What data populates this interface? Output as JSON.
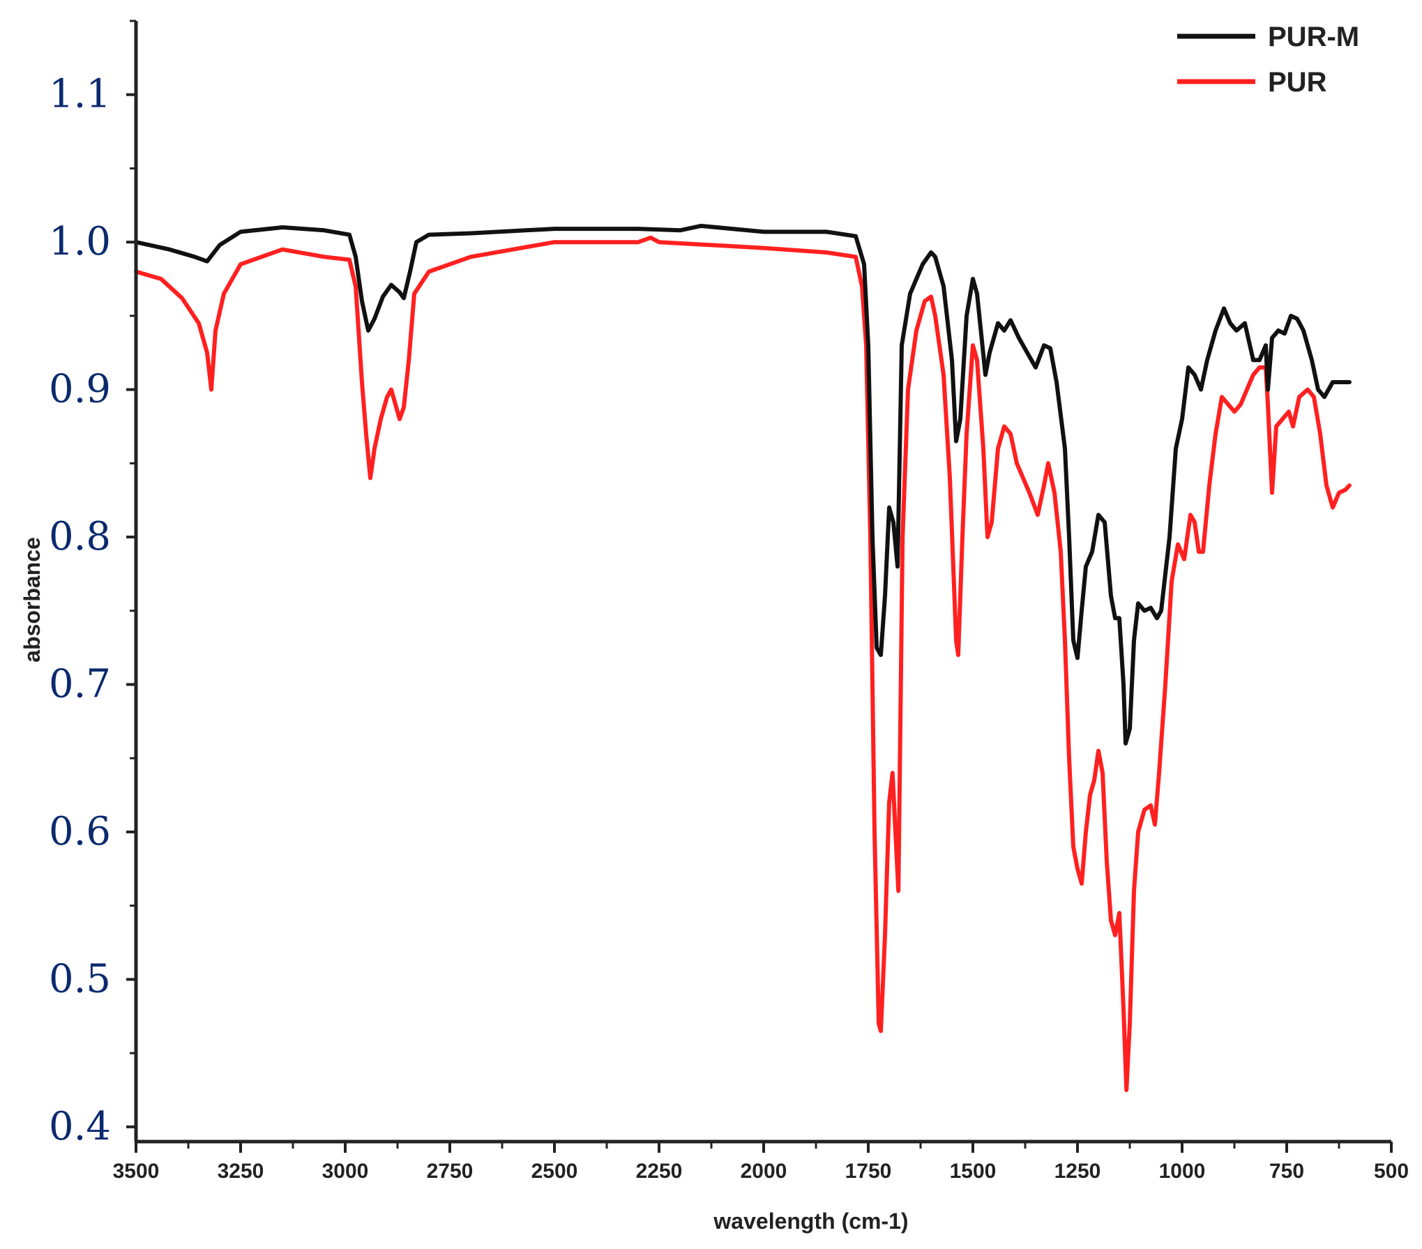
{
  "chart_data": {
    "type": "line",
    "xlabel": "wavelength (cm-1)",
    "ylabel": "absorbance",
    "xlim": [
      3500,
      500
    ],
    "ylim": [
      0.39,
      1.15
    ],
    "x_reversed": true,
    "grid": false,
    "legend_position": "top-right",
    "x_ticks": [
      3500,
      3250,
      3000,
      2750,
      2500,
      2250,
      2000,
      1750,
      1500,
      1250,
      1000,
      750,
      500
    ],
    "x_tick_labels": [
      "3500",
      "3250",
      "3000",
      "2750",
      "2500",
      "2250",
      "2000",
      "1750",
      "1500",
      "1250",
      "1000",
      "750",
      "500"
    ],
    "y_ticks": [
      0.4,
      0.5,
      0.6,
      0.7,
      0.8,
      0.9,
      1.0,
      1.1
    ],
    "y_tick_labels": [
      "0.4",
      "0.5",
      "0.6",
      "0.7",
      "0.8",
      "0.9",
      "1.0",
      "1.1"
    ],
    "series": [
      {
        "name": "PUR-M",
        "color": "#111111",
        "points": [
          [
            3500,
            1.0
          ],
          [
            3420,
            0.995
          ],
          [
            3360,
            0.99
          ],
          [
            3330,
            0.987
          ],
          [
            3300,
            0.998
          ],
          [
            3250,
            1.007
          ],
          [
            3150,
            1.01
          ],
          [
            3050,
            1.008
          ],
          [
            2990,
            1.005
          ],
          [
            2975,
            0.99
          ],
          [
            2960,
            0.96
          ],
          [
            2945,
            0.94
          ],
          [
            2930,
            0.948
          ],
          [
            2910,
            0.963
          ],
          [
            2890,
            0.971
          ],
          [
            2870,
            0.966
          ],
          [
            2860,
            0.962
          ],
          [
            2845,
            0.98
          ],
          [
            2830,
            1.0
          ],
          [
            2800,
            1.005
          ],
          [
            2700,
            1.006
          ],
          [
            2500,
            1.009
          ],
          [
            2300,
            1.009
          ],
          [
            2200,
            1.008
          ],
          [
            2150,
            1.011
          ],
          [
            2000,
            1.007
          ],
          [
            1850,
            1.007
          ],
          [
            1780,
            1.004
          ],
          [
            1760,
            0.985
          ],
          [
            1750,
            0.93
          ],
          [
            1740,
            0.8
          ],
          [
            1730,
            0.725
          ],
          [
            1720,
            0.72
          ],
          [
            1710,
            0.76
          ],
          [
            1700,
            0.82
          ],
          [
            1690,
            0.81
          ],
          [
            1680,
            0.78
          ],
          [
            1670,
            0.93
          ],
          [
            1650,
            0.965
          ],
          [
            1620,
            0.985
          ],
          [
            1600,
            0.993
          ],
          [
            1590,
            0.99
          ],
          [
            1570,
            0.97
          ],
          [
            1550,
            0.92
          ],
          [
            1540,
            0.865
          ],
          [
            1530,
            0.88
          ],
          [
            1515,
            0.95
          ],
          [
            1500,
            0.975
          ],
          [
            1490,
            0.965
          ],
          [
            1470,
            0.91
          ],
          [
            1460,
            0.925
          ],
          [
            1440,
            0.945
          ],
          [
            1425,
            0.94
          ],
          [
            1410,
            0.947
          ],
          [
            1390,
            0.935
          ],
          [
            1370,
            0.925
          ],
          [
            1350,
            0.915
          ],
          [
            1330,
            0.93
          ],
          [
            1315,
            0.928
          ],
          [
            1300,
            0.905
          ],
          [
            1280,
            0.86
          ],
          [
            1270,
            0.8
          ],
          [
            1260,
            0.73
          ],
          [
            1250,
            0.718
          ],
          [
            1240,
            0.75
          ],
          [
            1230,
            0.78
          ],
          [
            1215,
            0.79
          ],
          [
            1200,
            0.815
          ],
          [
            1185,
            0.81
          ],
          [
            1170,
            0.76
          ],
          [
            1160,
            0.745
          ],
          [
            1150,
            0.745
          ],
          [
            1140,
            0.7
          ],
          [
            1135,
            0.66
          ],
          [
            1125,
            0.67
          ],
          [
            1115,
            0.73
          ],
          [
            1105,
            0.755
          ],
          [
            1090,
            0.75
          ],
          [
            1075,
            0.752
          ],
          [
            1060,
            0.745
          ],
          [
            1050,
            0.75
          ],
          [
            1030,
            0.8
          ],
          [
            1015,
            0.86
          ],
          [
            1000,
            0.88
          ],
          [
            985,
            0.915
          ],
          [
            970,
            0.91
          ],
          [
            955,
            0.9
          ],
          [
            940,
            0.92
          ],
          [
            920,
            0.94
          ],
          [
            900,
            0.955
          ],
          [
            885,
            0.945
          ],
          [
            870,
            0.94
          ],
          [
            850,
            0.945
          ],
          [
            830,
            0.92
          ],
          [
            815,
            0.92
          ],
          [
            800,
            0.93
          ],
          [
            795,
            0.9
          ],
          [
            785,
            0.935
          ],
          [
            770,
            0.94
          ],
          [
            755,
            0.938
          ],
          [
            740,
            0.95
          ],
          [
            725,
            0.948
          ],
          [
            710,
            0.94
          ],
          [
            690,
            0.92
          ],
          [
            675,
            0.9
          ],
          [
            660,
            0.895
          ],
          [
            650,
            0.9
          ],
          [
            640,
            0.905
          ],
          [
            625,
            0.905
          ],
          [
            600,
            0.905
          ]
        ]
      },
      {
        "name": "PUR",
        "color": "#ff2020",
        "points": [
          [
            3500,
            0.98
          ],
          [
            3440,
            0.975
          ],
          [
            3390,
            0.962
          ],
          [
            3350,
            0.945
          ],
          [
            3330,
            0.925
          ],
          [
            3320,
            0.9
          ],
          [
            3310,
            0.94
          ],
          [
            3290,
            0.965
          ],
          [
            3250,
            0.985
          ],
          [
            3150,
            0.995
          ],
          [
            3050,
            0.99
          ],
          [
            2990,
            0.988
          ],
          [
            2975,
            0.97
          ],
          [
            2960,
            0.905
          ],
          [
            2950,
            0.87
          ],
          [
            2940,
            0.84
          ],
          [
            2930,
            0.86
          ],
          [
            2915,
            0.88
          ],
          [
            2900,
            0.895
          ],
          [
            2890,
            0.9
          ],
          [
            2880,
            0.89
          ],
          [
            2870,
            0.88
          ],
          [
            2860,
            0.888
          ],
          [
            2848,
            0.92
          ],
          [
            2835,
            0.965
          ],
          [
            2800,
            0.98
          ],
          [
            2700,
            0.99
          ],
          [
            2500,
            1.0
          ],
          [
            2300,
            1.0
          ],
          [
            2270,
            1.003
          ],
          [
            2250,
            1.0
          ],
          [
            2000,
            0.996
          ],
          [
            1850,
            0.993
          ],
          [
            1780,
            0.99
          ],
          [
            1765,
            0.97
          ],
          [
            1755,
            0.93
          ],
          [
            1745,
            0.8
          ],
          [
            1735,
            0.6
          ],
          [
            1725,
            0.47
          ],
          [
            1720,
            0.465
          ],
          [
            1710,
            0.53
          ],
          [
            1700,
            0.62
          ],
          [
            1692,
            0.64
          ],
          [
            1685,
            0.6
          ],
          [
            1678,
            0.56
          ],
          [
            1668,
            0.8
          ],
          [
            1655,
            0.9
          ],
          [
            1635,
            0.94
          ],
          [
            1615,
            0.96
          ],
          [
            1600,
            0.963
          ],
          [
            1590,
            0.95
          ],
          [
            1570,
            0.91
          ],
          [
            1555,
            0.84
          ],
          [
            1540,
            0.73
          ],
          [
            1535,
            0.72
          ],
          [
            1525,
            0.8
          ],
          [
            1515,
            0.87
          ],
          [
            1500,
            0.93
          ],
          [
            1490,
            0.92
          ],
          [
            1475,
            0.86
          ],
          [
            1465,
            0.8
          ],
          [
            1455,
            0.81
          ],
          [
            1440,
            0.86
          ],
          [
            1425,
            0.875
          ],
          [
            1410,
            0.87
          ],
          [
            1395,
            0.85
          ],
          [
            1380,
            0.84
          ],
          [
            1365,
            0.83
          ],
          [
            1345,
            0.815
          ],
          [
            1330,
            0.835
          ],
          [
            1320,
            0.85
          ],
          [
            1305,
            0.83
          ],
          [
            1290,
            0.79
          ],
          [
            1280,
            0.73
          ],
          [
            1270,
            0.65
          ],
          [
            1260,
            0.59
          ],
          [
            1250,
            0.575
          ],
          [
            1240,
            0.565
          ],
          [
            1230,
            0.6
          ],
          [
            1220,
            0.625
          ],
          [
            1210,
            0.635
          ],
          [
            1200,
            0.655
          ],
          [
            1190,
            0.64
          ],
          [
            1180,
            0.58
          ],
          [
            1170,
            0.54
          ],
          [
            1160,
            0.53
          ],
          [
            1150,
            0.545
          ],
          [
            1140,
            0.48
          ],
          [
            1133,
            0.425
          ],
          [
            1125,
            0.47
          ],
          [
            1115,
            0.56
          ],
          [
            1105,
            0.6
          ],
          [
            1090,
            0.615
          ],
          [
            1075,
            0.618
          ],
          [
            1065,
            0.605
          ],
          [
            1055,
            0.64
          ],
          [
            1040,
            0.7
          ],
          [
            1025,
            0.77
          ],
          [
            1010,
            0.795
          ],
          [
            995,
            0.785
          ],
          [
            980,
            0.815
          ],
          [
            970,
            0.81
          ],
          [
            960,
            0.79
          ],
          [
            950,
            0.79
          ],
          [
            935,
            0.835
          ],
          [
            920,
            0.87
          ],
          [
            905,
            0.895
          ],
          [
            890,
            0.89
          ],
          [
            875,
            0.885
          ],
          [
            860,
            0.89
          ],
          [
            845,
            0.9
          ],
          [
            830,
            0.91
          ],
          [
            815,
            0.915
          ],
          [
            800,
            0.915
          ],
          [
            795,
            0.89
          ],
          [
            785,
            0.83
          ],
          [
            775,
            0.875
          ],
          [
            760,
            0.88
          ],
          [
            745,
            0.885
          ],
          [
            735,
            0.875
          ],
          [
            720,
            0.895
          ],
          [
            700,
            0.9
          ],
          [
            685,
            0.895
          ],
          [
            670,
            0.87
          ],
          [
            655,
            0.835
          ],
          [
            640,
            0.82
          ],
          [
            625,
            0.83
          ],
          [
            610,
            0.832
          ],
          [
            600,
            0.835
          ]
        ]
      }
    ]
  }
}
